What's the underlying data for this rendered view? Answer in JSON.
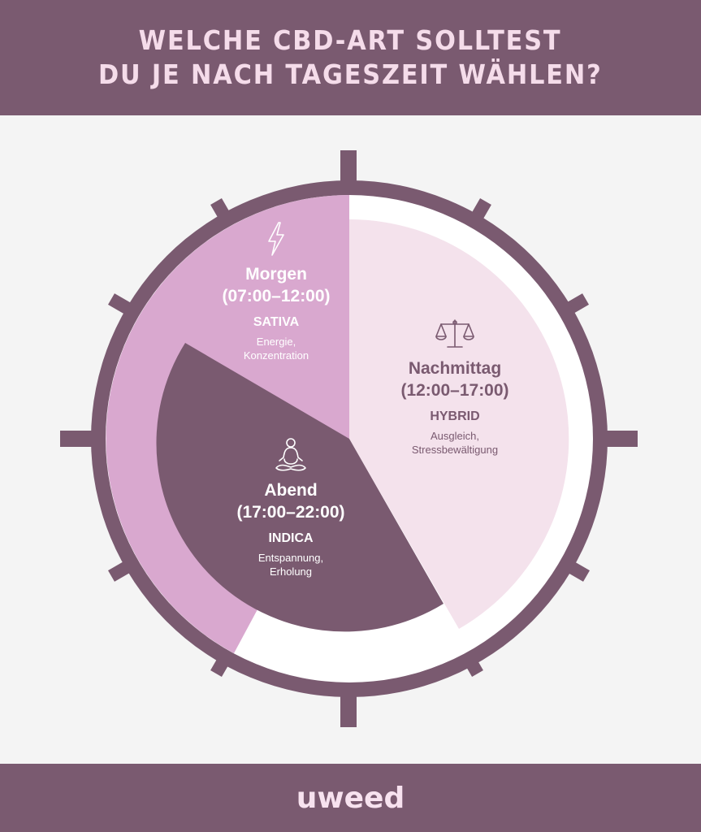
{
  "header": {
    "line1": "WELCHE CBD-ART SOLLTEST",
    "line2": "DU JE NACH TAGESZEIT WÄHLEN?"
  },
  "segments": {
    "morgen": {
      "title": "Morgen",
      "time": "(07:00–12:00)",
      "type": "SATIVA",
      "desc1": "Energie,",
      "desc2": "Konzentration",
      "icon": "lightning-icon"
    },
    "nachmittag": {
      "title": "Nachmittag",
      "time": "(12:00–17:00)",
      "type": "HYBRID",
      "desc1": "Ausgleich,",
      "desc2": "Stressbewältigung",
      "icon": "scales-icon"
    },
    "abend": {
      "title": "Abend",
      "time": "(17:00–22:00)",
      "type": "INDICA",
      "desc1": "Entspannung,",
      "desc2": "Erholung",
      "icon": "meditation-icon"
    }
  },
  "colors": {
    "purple_dark": "#7a5a70",
    "pink_light": "#f4e2ec",
    "pink_mid": "#d9a8cf",
    "white": "#ffffff"
  },
  "footer": {
    "logo": "uweed"
  }
}
